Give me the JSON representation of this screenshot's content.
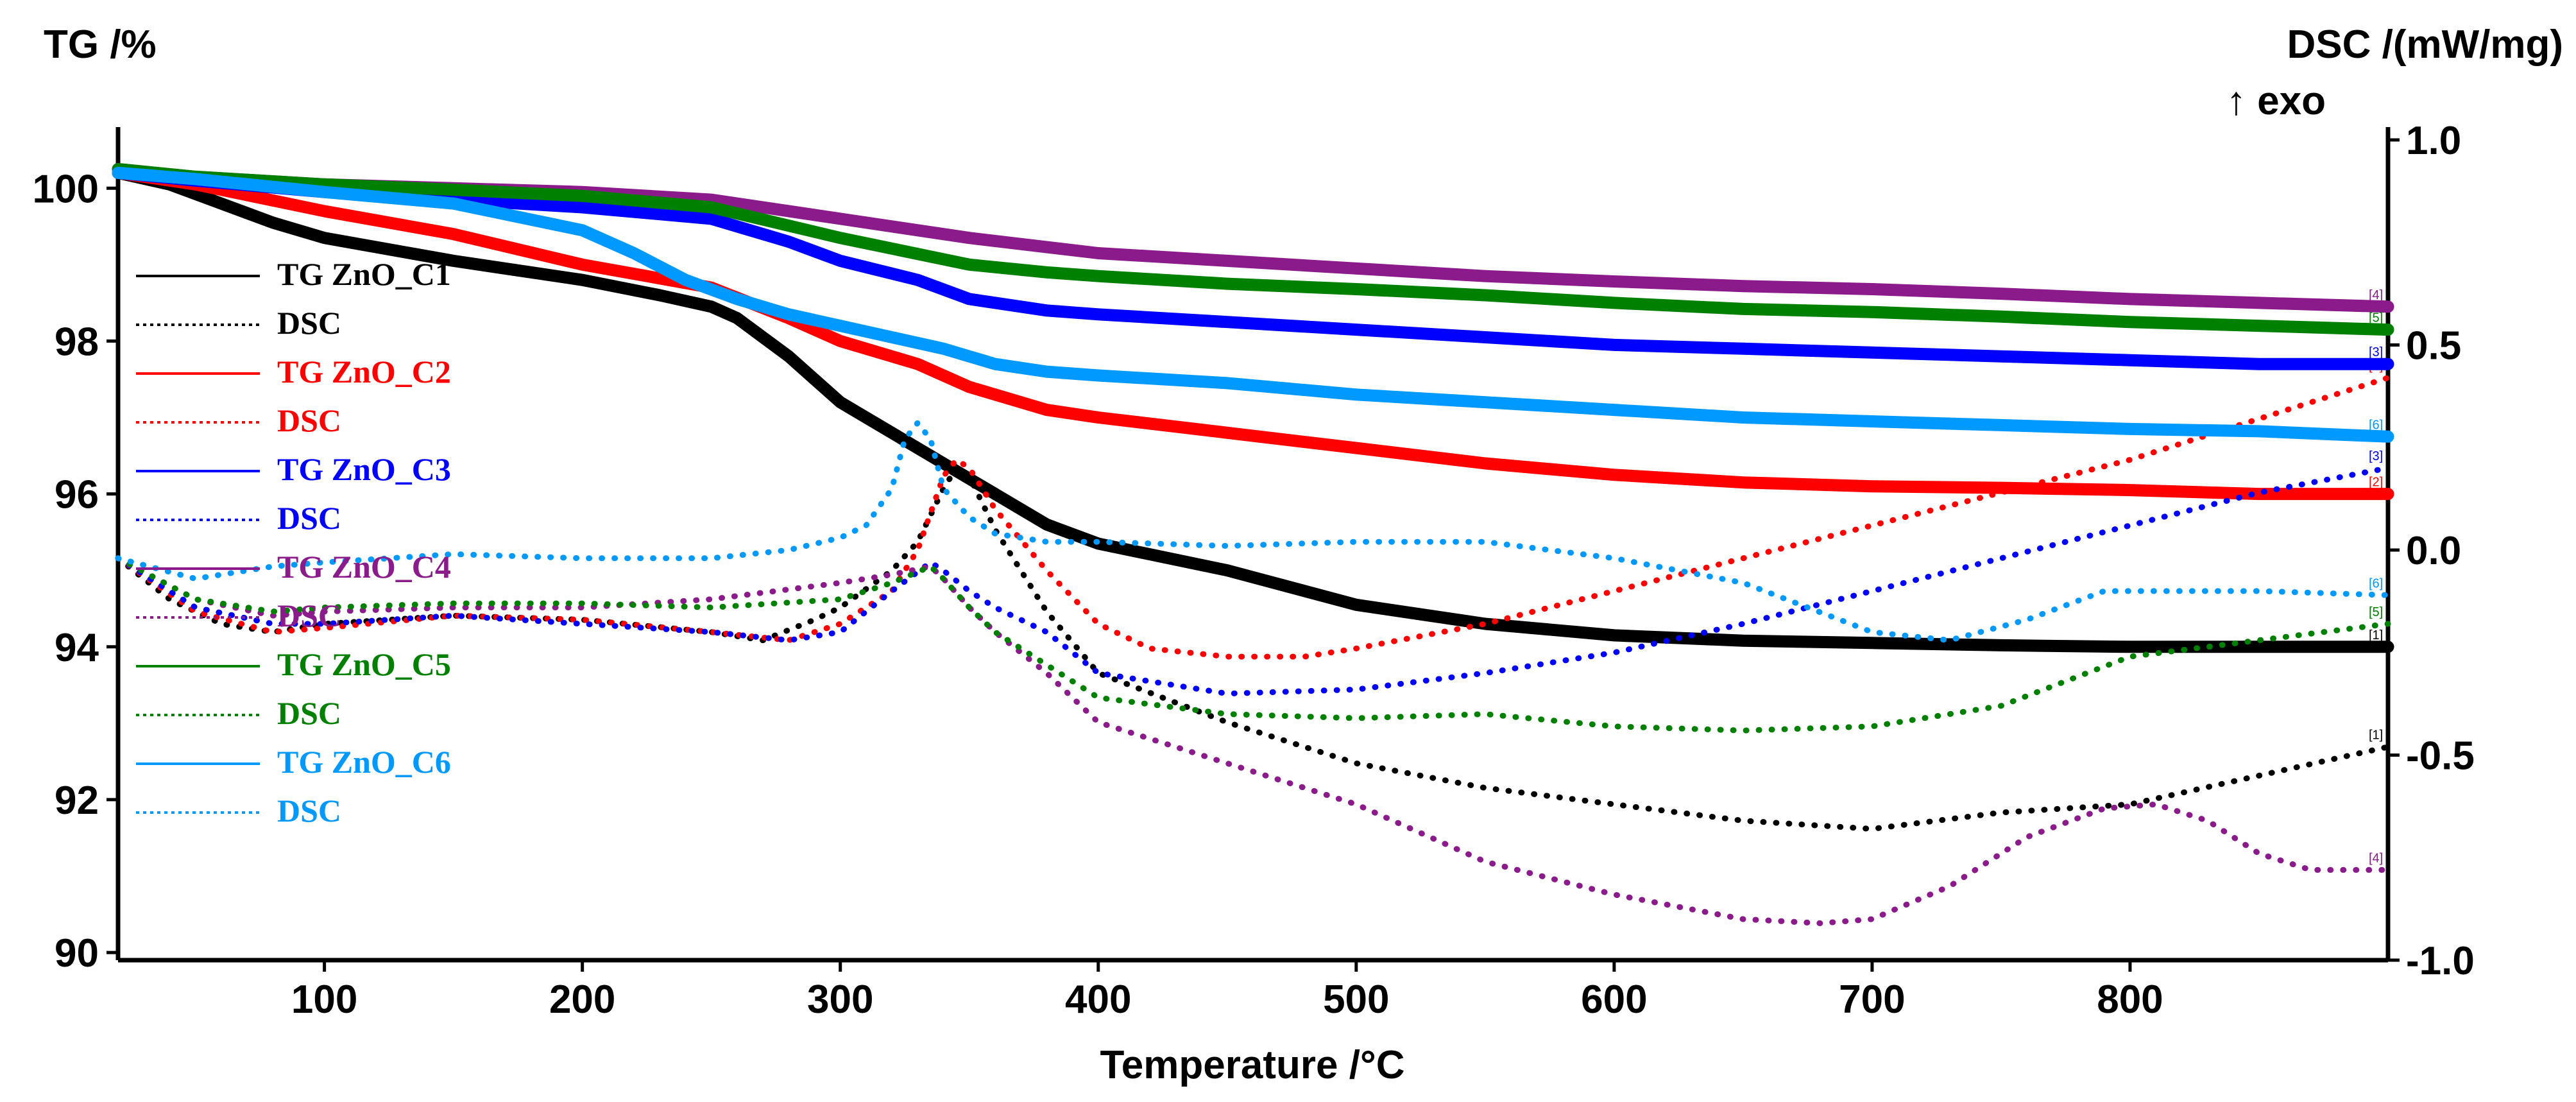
{
  "chart_data": {
    "type": "line",
    "xlabel": "Temperature /°C",
    "ylabel_left": "TG /%",
    "ylabel_right": "DSC /(mW/mg)",
    "ylabel_right_note": "↑ exo",
    "xlim": [
      20,
      900
    ],
    "ylim_left": [
      89.9,
      100.8
    ],
    "ylim_right": [
      -1.0,
      1.0
    ],
    "x_ticks": [
      100,
      200,
      300,
      400,
      500,
      600,
      700,
      800
    ],
    "x_tick_labels": [
      "100",
      "200",
      "300",
      "400",
      "500",
      "600",
      "700",
      "800"
    ],
    "left_ticks": [
      90,
      92,
      94,
      96,
      98,
      100
    ],
    "left_tick_labels": [
      "90",
      "92",
      "94",
      "96",
      "98",
      "100"
    ],
    "right_ticks": [
      -1.0,
      -0.5,
      0.0,
      0.5,
      1.0
    ],
    "right_tick_labels": [
      "-1.0",
      "-0.5",
      "0.0",
      "0.5",
      "1.0"
    ],
    "series": [
      {
        "name": "TG ZnO_C1",
        "kind": "TG",
        "axis": "left",
        "color": "#000000",
        "tag": "[1]",
        "x": [
          20,
          40,
          60,
          80,
          100,
          150,
          200,
          230,
          250,
          260,
          270,
          280,
          290,
          300,
          320,
          340,
          360,
          380,
          400,
          450,
          500,
          550,
          600,
          650,
          700,
          750,
          800,
          850,
          900
        ],
        "y": [
          100.2,
          100.05,
          99.8,
          99.55,
          99.35,
          99.05,
          98.8,
          98.6,
          98.45,
          98.3,
          98.05,
          97.8,
          97.5,
          97.2,
          96.8,
          96.4,
          96.0,
          95.6,
          95.35,
          95.0,
          94.55,
          94.3,
          94.15,
          94.08,
          94.05,
          94.02,
          94.0,
          94.0,
          94.0
        ]
      },
      {
        "name": "DSC",
        "kind": "DSC",
        "axis": "right",
        "color": "#000000",
        "tag": "[1]",
        "x": [
          20,
          40,
          60,
          80,
          100,
          150,
          200,
          250,
          270,
          290,
          300,
          320,
          330,
          340,
          345,
          350,
          360,
          380,
          400,
          450,
          500,
          550,
          600,
          650,
          700,
          750,
          800,
          850,
          900
        ],
        "y": [
          -0.02,
          -0.12,
          -0.18,
          -0.2,
          -0.18,
          -0.16,
          -0.17,
          -0.2,
          -0.22,
          -0.17,
          -0.14,
          -0.05,
          0.02,
          0.15,
          0.2,
          0.18,
          0.05,
          -0.15,
          -0.3,
          -0.42,
          -0.52,
          -0.58,
          -0.62,
          -0.66,
          -0.68,
          -0.64,
          -0.62,
          -0.55,
          -0.48
        ]
      },
      {
        "name": "TG ZnO_C2",
        "kind": "TG",
        "axis": "left",
        "color": "#ff0000",
        "tag": "[2]",
        "x": [
          20,
          50,
          100,
          150,
          200,
          250,
          280,
          300,
          330,
          350,
          380,
          400,
          450,
          500,
          550,
          600,
          650,
          700,
          750,
          800,
          850,
          900
        ],
        "y": [
          100.2,
          100.05,
          99.7,
          99.4,
          99.0,
          98.7,
          98.3,
          98.0,
          97.7,
          97.4,
          97.1,
          97.0,
          96.8,
          96.6,
          96.4,
          96.25,
          96.15,
          96.1,
          96.08,
          96.05,
          96.0,
          96.0
        ]
      },
      {
        "name": "DSC",
        "kind": "DSC",
        "axis": "right",
        "color": "#ff0000",
        "tag": "[2]",
        "x": [
          20,
          50,
          80,
          100,
          150,
          200,
          250,
          280,
          300,
          320,
          330,
          340,
          345,
          350,
          360,
          380,
          400,
          420,
          450,
          480,
          500,
          550,
          600,
          650,
          700,
          750,
          800,
          850,
          900
        ],
        "y": [
          -0.02,
          -0.15,
          -0.2,
          -0.19,
          -0.16,
          -0.17,
          -0.2,
          -0.22,
          -0.18,
          -0.1,
          0.0,
          0.18,
          0.22,
          0.2,
          0.1,
          -0.05,
          -0.18,
          -0.24,
          -0.26,
          -0.26,
          -0.24,
          -0.18,
          -0.1,
          -0.02,
          0.06,
          0.14,
          0.22,
          0.32,
          0.42
        ]
      },
      {
        "name": "TG ZnO_C3",
        "kind": "TG",
        "axis": "left",
        "color": "#0000ff",
        "tag": "[3]",
        "x": [
          20,
          50,
          100,
          150,
          200,
          250,
          280,
          300,
          330,
          350,
          380,
          400,
          450,
          500,
          550,
          600,
          650,
          700,
          750,
          800,
          850,
          900
        ],
        "y": [
          100.2,
          100.1,
          99.95,
          99.85,
          99.75,
          99.6,
          99.3,
          99.05,
          98.8,
          98.55,
          98.4,
          98.35,
          98.25,
          98.15,
          98.05,
          97.95,
          97.9,
          97.85,
          97.8,
          97.75,
          97.7,
          97.7
        ]
      },
      {
        "name": "DSC",
        "kind": "DSC",
        "axis": "right",
        "color": "#0000ff",
        "tag": "[3]",
        "x": [
          20,
          50,
          80,
          100,
          150,
          200,
          250,
          280,
          300,
          320,
          335,
          340,
          350,
          360,
          380,
          400,
          450,
          500,
          550,
          600,
          650,
          700,
          750,
          800,
          850,
          900
        ],
        "y": [
          -0.02,
          -0.14,
          -0.18,
          -0.18,
          -0.16,
          -0.18,
          -0.2,
          -0.22,
          -0.2,
          -0.1,
          -0.03,
          -0.05,
          -0.1,
          -0.14,
          -0.2,
          -0.3,
          -0.35,
          -0.34,
          -0.3,
          -0.25,
          -0.18,
          -0.1,
          -0.02,
          0.06,
          0.14,
          0.2
        ]
      },
      {
        "name": "TG ZnO_C4",
        "kind": "TG",
        "axis": "left",
        "color": "#8b1a8b",
        "tag": "[4]",
        "x": [
          20,
          50,
          100,
          150,
          200,
          250,
          300,
          350,
          400,
          450,
          500,
          550,
          600,
          650,
          700,
          750,
          800,
          850,
          900
        ],
        "y": [
          100.25,
          100.15,
          100.05,
          100.0,
          99.95,
          99.85,
          99.6,
          99.35,
          99.15,
          99.05,
          98.95,
          98.85,
          98.78,
          98.72,
          98.68,
          98.62,
          98.55,
          98.5,
          98.45
        ]
      },
      {
        "name": "DSC",
        "kind": "DSC",
        "axis": "right",
        "color": "#8b1a8b",
        "tag": "[4]",
        "x": [
          20,
          50,
          80,
          100,
          150,
          200,
          250,
          300,
          320,
          335,
          340,
          350,
          360,
          380,
          400,
          450,
          500,
          550,
          600,
          650,
          680,
          700,
          730,
          760,
          790,
          810,
          830,
          850,
          870,
          900
        ],
        "y": [
          -0.02,
          -0.12,
          -0.16,
          -0.15,
          -0.14,
          -0.14,
          -0.12,
          -0.08,
          -0.06,
          -0.04,
          -0.07,
          -0.14,
          -0.2,
          -0.3,
          -0.42,
          -0.52,
          -0.62,
          -0.76,
          -0.84,
          -0.9,
          -0.91,
          -0.9,
          -0.82,
          -0.7,
          -0.63,
          -0.62,
          -0.66,
          -0.74,
          -0.78,
          -0.78
        ]
      },
      {
        "name": "TG ZnO_C5",
        "kind": "TG",
        "axis": "left",
        "color": "#008000",
        "tag": "[5]",
        "x": [
          20,
          50,
          100,
          150,
          200,
          250,
          300,
          350,
          380,
          400,
          450,
          500,
          550,
          600,
          650,
          700,
          750,
          800,
          850,
          900
        ],
        "y": [
          100.25,
          100.15,
          100.05,
          99.98,
          99.9,
          99.75,
          99.35,
          99.0,
          98.9,
          98.85,
          98.75,
          98.68,
          98.6,
          98.5,
          98.42,
          98.38,
          98.32,
          98.25,
          98.2,
          98.15
        ]
      },
      {
        "name": "DSC",
        "kind": "DSC",
        "axis": "right",
        "color": "#008000",
        "tag": "[5]",
        "x": [
          20,
          50,
          80,
          100,
          150,
          200,
          250,
          300,
          320,
          335,
          340,
          350,
          360,
          380,
          400,
          450,
          500,
          550,
          600,
          650,
          700,
          750,
          800,
          850,
          900
        ],
        "y": [
          -0.02,
          -0.12,
          -0.15,
          -0.14,
          -0.13,
          -0.13,
          -0.14,
          -0.12,
          -0.08,
          -0.04,
          -0.07,
          -0.14,
          -0.2,
          -0.28,
          -0.36,
          -0.4,
          -0.41,
          -0.4,
          -0.43,
          -0.44,
          -0.43,
          -0.38,
          -0.26,
          -0.22,
          -0.18
        ]
      },
      {
        "name": "TG ZnO_C6",
        "kind": "TG",
        "axis": "left",
        "color": "#0099ff",
        "tag": "[6]",
        "x": [
          20,
          50,
          100,
          150,
          200,
          220,
          240,
          260,
          280,
          300,
          320,
          340,
          360,
          380,
          400,
          450,
          500,
          550,
          600,
          650,
          700,
          750,
          800,
          850,
          900
        ],
        "y": [
          100.2,
          100.12,
          99.95,
          99.8,
          99.45,
          99.15,
          98.8,
          98.55,
          98.35,
          98.2,
          98.05,
          97.9,
          97.7,
          97.6,
          97.55,
          97.45,
          97.3,
          97.2,
          97.1,
          97.0,
          96.95,
          96.9,
          96.85,
          96.82,
          96.75
        ]
      },
      {
        "name": "DSC",
        "kind": "DSC",
        "axis": "right",
        "color": "#0099ff",
        "tag": "[6]",
        "x": [
          20,
          50,
          80,
          100,
          150,
          200,
          250,
          280,
          300,
          310,
          320,
          325,
          330,
          335,
          340,
          350,
          360,
          380,
          400,
          450,
          500,
          550,
          600,
          650,
          700,
          730,
          760,
          790,
          810,
          850,
          900
        ],
        "y": [
          -0.02,
          -0.07,
          -0.04,
          -0.03,
          -0.01,
          -0.02,
          -0.02,
          0.0,
          0.03,
          0.06,
          0.15,
          0.27,
          0.31,
          0.27,
          0.15,
          0.08,
          0.04,
          0.02,
          0.02,
          0.01,
          0.02,
          0.02,
          -0.02,
          -0.08,
          -0.2,
          -0.22,
          -0.17,
          -0.1,
          -0.1,
          -0.1,
          -0.11
        ]
      }
    ]
  }
}
